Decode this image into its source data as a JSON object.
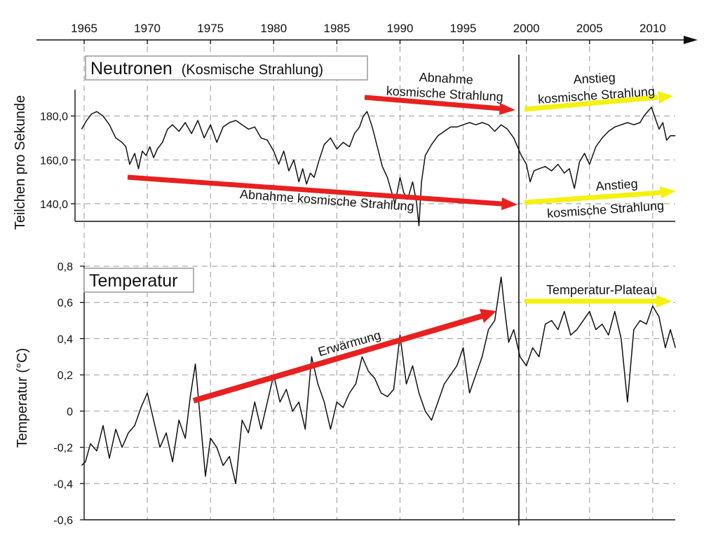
{
  "chart_data": [
    {
      "type": "line",
      "title": "Neutronen",
      "subtitle": "(Kosmische Strahlung)",
      "xlabel": "",
      "ylabel": "Teilchen pro Sekunde",
      "x_ticks": [
        "1965",
        "1970",
        "1975",
        "1980",
        "1985",
        "1990",
        "1995",
        "2000",
        "2005",
        "2010"
      ],
      "xlim": [
        1964.8,
        2011.8
      ],
      "ylim": [
        132,
        192
      ],
      "y_ticks": [
        {
          "value": 140,
          "label": "140,0"
        },
        {
          "value": 160,
          "label": "160,0"
        },
        {
          "value": 180,
          "label": "180,0"
        }
      ],
      "grid": true,
      "series": [
        {
          "color": "#111111",
          "x": [
            1964.8,
            1965.2,
            1965.6,
            1966.0,
            1966.5,
            1967.0,
            1967.5,
            1968.0,
            1968.3,
            1968.6,
            1969.0,
            1969.3,
            1969.6,
            1969.9,
            1970.2,
            1970.5,
            1970.8,
            1971.2,
            1971.6,
            1972.0,
            1972.5,
            1973.0,
            1973.5,
            1974.0,
            1974.5,
            1975.0,
            1975.5,
            1976.0,
            1976.5,
            1977.0,
            1977.5,
            1978.0,
            1978.5,
            1979.0,
            1979.5,
            1980.0,
            1980.4,
            1980.8,
            1981.2,
            1981.6,
            1982.0,
            1982.3,
            1982.6,
            1982.9,
            1983.2,
            1983.6,
            1984.0,
            1984.5,
            1985.0,
            1985.5,
            1986.0,
            1986.4,
            1986.8,
            1987.1,
            1987.4,
            1987.8,
            1988.2,
            1988.6,
            1989.0,
            1989.3,
            1989.6,
            1990.0,
            1990.3,
            1990.6,
            1991.0,
            1991.3,
            1991.5,
            1991.7,
            1992.0,
            1992.5,
            1993.0,
            1993.5,
            1994.0,
            1994.5,
            1995.0,
            1995.5,
            1996.0,
            1996.5,
            1997.0,
            1997.5,
            1998.0,
            1998.5,
            1999.0,
            1999.3,
            1999.6,
            2000.0,
            2000.3,
            2000.6,
            2001.0,
            2001.5,
            2002.0,
            2002.5,
            2003.0,
            2003.4,
            2003.8,
            2004.2,
            2004.6,
            2005.0,
            2005.5,
            2006.0,
            2006.5,
            2007.0,
            2007.5,
            2008.0,
            2008.5,
            2009.0,
            2009.3,
            2009.6,
            2009.9,
            2010.2,
            2010.5,
            2010.8,
            2011.1,
            2011.4,
            2011.8
          ],
          "values": [
            174,
            178,
            181,
            182,
            180,
            176,
            170,
            168,
            166,
            158,
            163,
            156,
            164,
            162,
            166,
            161,
            165,
            168,
            174,
            176,
            173,
            177,
            172,
            178,
            170,
            176,
            168,
            175,
            177,
            178,
            176,
            174,
            175,
            170,
            169,
            164,
            158,
            164,
            155,
            160,
            150,
            156,
            149,
            154,
            152,
            160,
            167,
            170,
            165,
            168,
            166,
            172,
            175,
            180,
            182,
            175,
            166,
            157,
            152,
            146,
            140,
            152,
            145,
            142,
            150,
            141,
            130,
            150,
            162,
            167,
            171,
            173,
            175,
            175,
            176,
            177,
            176,
            177,
            176,
            173,
            176,
            174,
            170,
            166,
            162,
            158,
            150,
            155,
            156,
            157,
            155,
            158,
            154,
            156,
            147,
            159,
            163,
            158,
            166,
            170,
            173,
            175,
            176,
            177,
            176,
            177,
            180,
            182,
            184,
            179,
            174,
            177,
            169,
            171,
            171
          ]
        }
      ],
      "annotations": [
        {
          "text": "Abnahme",
          "color": "#e82020"
        },
        {
          "text": "kosmische Strahlung",
          "color": "#e82020"
        },
        {
          "text": "Abnahme kosmische Strahlung",
          "color": "#e82020"
        },
        {
          "text": "Anstieg",
          "color": "#f4f10f"
        },
        {
          "text": "kosmische Strahlung",
          "color": "#f4f10f"
        },
        {
          "text": "Anstieg",
          "color": "#f4f10f"
        },
        {
          "text": "kosmische Strahlung",
          "color": "#f4f10f"
        }
      ]
    },
    {
      "type": "line",
      "title": "Temperatur",
      "xlabel": "",
      "ylabel": "Temperatur (°C)",
      "xlim": [
        1964.8,
        2011.8
      ],
      "ylim": [
        -0.6,
        0.8
      ],
      "y_ticks": [
        {
          "value": 0.8,
          "label": "0,8"
        },
        {
          "value": 0.6,
          "label": "0,6"
        },
        {
          "value": 0.4,
          "label": "0,4"
        },
        {
          "value": 0.2,
          "label": "0,2"
        },
        {
          "value": 0.0,
          "label": "0"
        },
        {
          "value": -0.2,
          "label": "-0,2"
        },
        {
          "value": -0.4,
          "label": "-0,4"
        },
        {
          "value": -0.6,
          "label": "-0,6"
        }
      ],
      "grid": true,
      "series": [
        {
          "color": "#111111",
          "x": [
            1964.8,
            1965.1,
            1965.5,
            1966.0,
            1966.5,
            1967.0,
            1967.5,
            1968.0,
            1968.5,
            1969.0,
            1969.5,
            1970.0,
            1970.5,
            1971.0,
            1971.5,
            1972.0,
            1972.5,
            1973.0,
            1973.4,
            1973.8,
            1974.2,
            1974.6,
            1975.0,
            1975.5,
            1976.0,
            1976.5,
            1977.0,
            1977.5,
            1978.0,
            1978.5,
            1979.0,
            1979.5,
            1980.0,
            1980.5,
            1981.0,
            1981.5,
            1982.0,
            1982.5,
            1983.0,
            1983.5,
            1984.0,
            1984.5,
            1985.0,
            1985.5,
            1986.0,
            1986.5,
            1987.0,
            1987.5,
            1988.0,
            1988.5,
            1989.0,
            1989.5,
            1990.0,
            1990.5,
            1991.0,
            1991.5,
            1992.0,
            1992.5,
            1993.0,
            1993.5,
            1994.0,
            1994.5,
            1995.0,
            1995.5,
            1996.0,
            1996.5,
            1997.0,
            1997.5,
            1998.0,
            1998.3,
            1998.6,
            1999.0,
            1999.5,
            2000.0,
            2000.5,
            2001.0,
            2001.5,
            2002.0,
            2002.5,
            2003.0,
            2003.5,
            2004.0,
            2004.5,
            2005.0,
            2005.5,
            2006.0,
            2006.5,
            2007.0,
            2007.5,
            2008.0,
            2008.5,
            2009.0,
            2009.5,
            2010.0,
            2010.5,
            2011.0,
            2011.4,
            2011.8
          ],
          "values": [
            -0.3,
            -0.28,
            -0.18,
            -0.22,
            -0.08,
            -0.26,
            -0.1,
            -0.2,
            -0.12,
            -0.08,
            0.02,
            0.1,
            -0.05,
            -0.2,
            -0.12,
            -0.28,
            -0.05,
            -0.15,
            0.08,
            0.26,
            -0.05,
            -0.36,
            -0.15,
            -0.2,
            -0.3,
            -0.25,
            -0.4,
            -0.05,
            -0.12,
            0.05,
            -0.1,
            0.05,
            0.2,
            0.05,
            0.12,
            0.0,
            0.05,
            -0.1,
            0.3,
            0.15,
            0.05,
            -0.1,
            0.05,
            0.02,
            0.1,
            0.15,
            0.3,
            0.22,
            0.18,
            0.1,
            0.08,
            0.12,
            0.42,
            0.15,
            0.25,
            0.1,
            0.0,
            -0.05,
            0.05,
            0.15,
            0.2,
            0.25,
            0.35,
            0.1,
            0.2,
            0.3,
            0.45,
            0.5,
            0.74,
            0.55,
            0.38,
            0.45,
            0.3,
            0.25,
            0.35,
            0.3,
            0.48,
            0.5,
            0.45,
            0.55,
            0.42,
            0.45,
            0.5,
            0.55,
            0.45,
            0.48,
            0.42,
            0.55,
            0.4,
            0.05,
            0.45,
            0.5,
            0.48,
            0.58,
            0.52,
            0.35,
            0.45,
            0.35
          ]
        }
      ],
      "annotations": [
        {
          "text": "Erwärmung",
          "color": "#e82020"
        },
        {
          "text": "Temperatur-Plateau",
          "color": "#f4f10f"
        }
      ]
    }
  ]
}
